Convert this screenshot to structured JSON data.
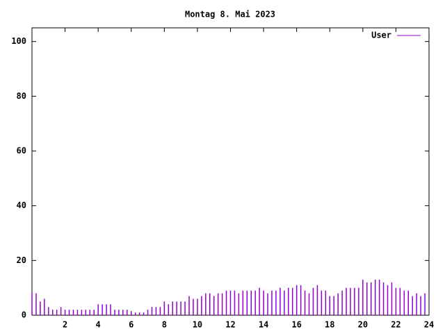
{
  "chart_data": {
    "type": "impulse",
    "title": "Montag 8. Mai 2023",
    "series": [
      {
        "name": "User",
        "color": "#9400d3",
        "values": [
          8,
          8,
          5,
          6,
          3,
          2,
          2,
          3,
          2,
          2,
          2,
          2,
          2,
          2,
          2,
          2,
          4,
          4,
          4,
          4,
          2,
          2,
          2,
          2,
          1,
          1,
          1,
          1,
          2,
          3,
          3,
          3,
          5,
          4,
          5,
          5,
          5,
          5,
          7,
          6,
          6,
          7,
          8,
          8,
          7,
          8,
          8,
          9,
          9,
          9,
          8,
          9,
          9,
          9,
          9,
          10,
          9,
          8,
          9,
          9,
          10,
          9,
          10,
          10,
          11,
          11,
          9,
          8,
          10,
          11,
          9,
          9,
          7,
          7,
          8,
          9,
          10,
          10,
          10,
          10,
          13,
          12,
          12,
          13,
          13,
          12,
          11,
          12,
          10,
          10,
          9,
          9,
          7,
          8,
          7,
          8
        ]
      }
    ],
    "x": [
      0,
      0.25,
      0.5,
      0.75,
      1,
      1.25,
      1.5,
      1.75,
      2,
      2.25,
      2.5,
      2.75,
      3,
      3.25,
      3.5,
      3.75,
      4,
      4.25,
      4.5,
      4.75,
      5,
      5.25,
      5.5,
      5.75,
      6,
      6.25,
      6.5,
      6.75,
      7,
      7.25,
      7.5,
      7.75,
      8,
      8.25,
      8.5,
      8.75,
      9,
      9.25,
      9.5,
      9.75,
      10,
      10.25,
      10.5,
      10.75,
      11,
      11.25,
      11.5,
      11.75,
      12,
      12.25,
      12.5,
      12.75,
      13,
      13.25,
      13.5,
      13.75,
      14,
      14.25,
      14.5,
      14.75,
      15,
      15.25,
      15.5,
      15.75,
      16,
      16.25,
      16.5,
      16.75,
      17,
      17.25,
      17.5,
      17.75,
      18,
      18.25,
      18.5,
      18.75,
      19,
      19.25,
      19.5,
      19.75,
      20,
      20.25,
      20.5,
      20.75,
      21,
      21.25,
      21.5,
      21.75,
      22,
      22.25,
      22.5,
      22.75,
      23,
      23.25,
      23.5,
      23.75
    ],
    "xlim": [
      0,
      24
    ],
    "xticks": [
      2,
      4,
      6,
      8,
      10,
      12,
      14,
      16,
      18,
      20,
      22,
      24
    ],
    "ylim": [
      0,
      105
    ],
    "yticks": [
      0,
      20,
      40,
      60,
      80,
      100
    ],
    "legend": "top-right"
  }
}
